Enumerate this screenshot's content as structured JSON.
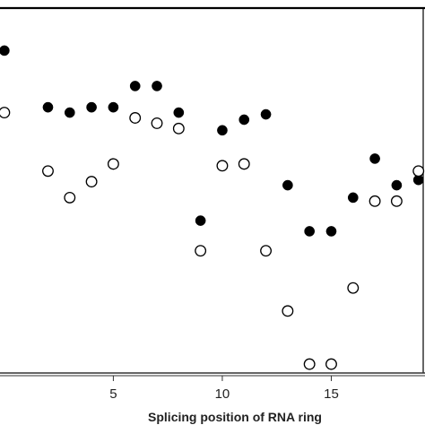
{
  "chart_data": {
    "type": "scatter",
    "title": "",
    "xlabel": "Splicing position of RNA ring",
    "ylabel": "",
    "xlim": [
      -0.2,
      19.3
    ],
    "ylim": [
      0,
      10.3
    ],
    "xticks": [
      5,
      10,
      15
    ],
    "xtick_labels": [
      "5",
      "10",
      "15"
    ],
    "grid": false,
    "legend": "none",
    "colors": {
      "filled": "#000000",
      "open_fill": "#ffffff",
      "stroke": "#000000"
    },
    "series": [
      {
        "marker": "filled-circle",
        "x": [
          0,
          2,
          3,
          4,
          5,
          6,
          7,
          8,
          9,
          10,
          11,
          12,
          13,
          14,
          15,
          16,
          17,
          18,
          19
        ],
        "y": [
          9.1,
          7.5,
          7.35,
          7.5,
          7.5,
          8.1,
          8.1,
          7.35,
          4.3,
          6.85,
          7.15,
          7.3,
          5.3,
          4.0,
          4.0,
          4.95,
          6.05,
          5.3,
          5.45
        ]
      },
      {
        "marker": "open-circle",
        "x": [
          0,
          2,
          3,
          4,
          5,
          6,
          7,
          8,
          9,
          10,
          11,
          12,
          13,
          14,
          15,
          16,
          17,
          18,
          19
        ],
        "y": [
          7.35,
          5.7,
          4.95,
          5.4,
          5.9,
          7.2,
          7.05,
          6.9,
          3.45,
          5.85,
          5.9,
          3.45,
          1.75,
          0.25,
          0.25,
          2.4,
          4.85,
          4.85,
          5.7
        ]
      }
    ]
  }
}
